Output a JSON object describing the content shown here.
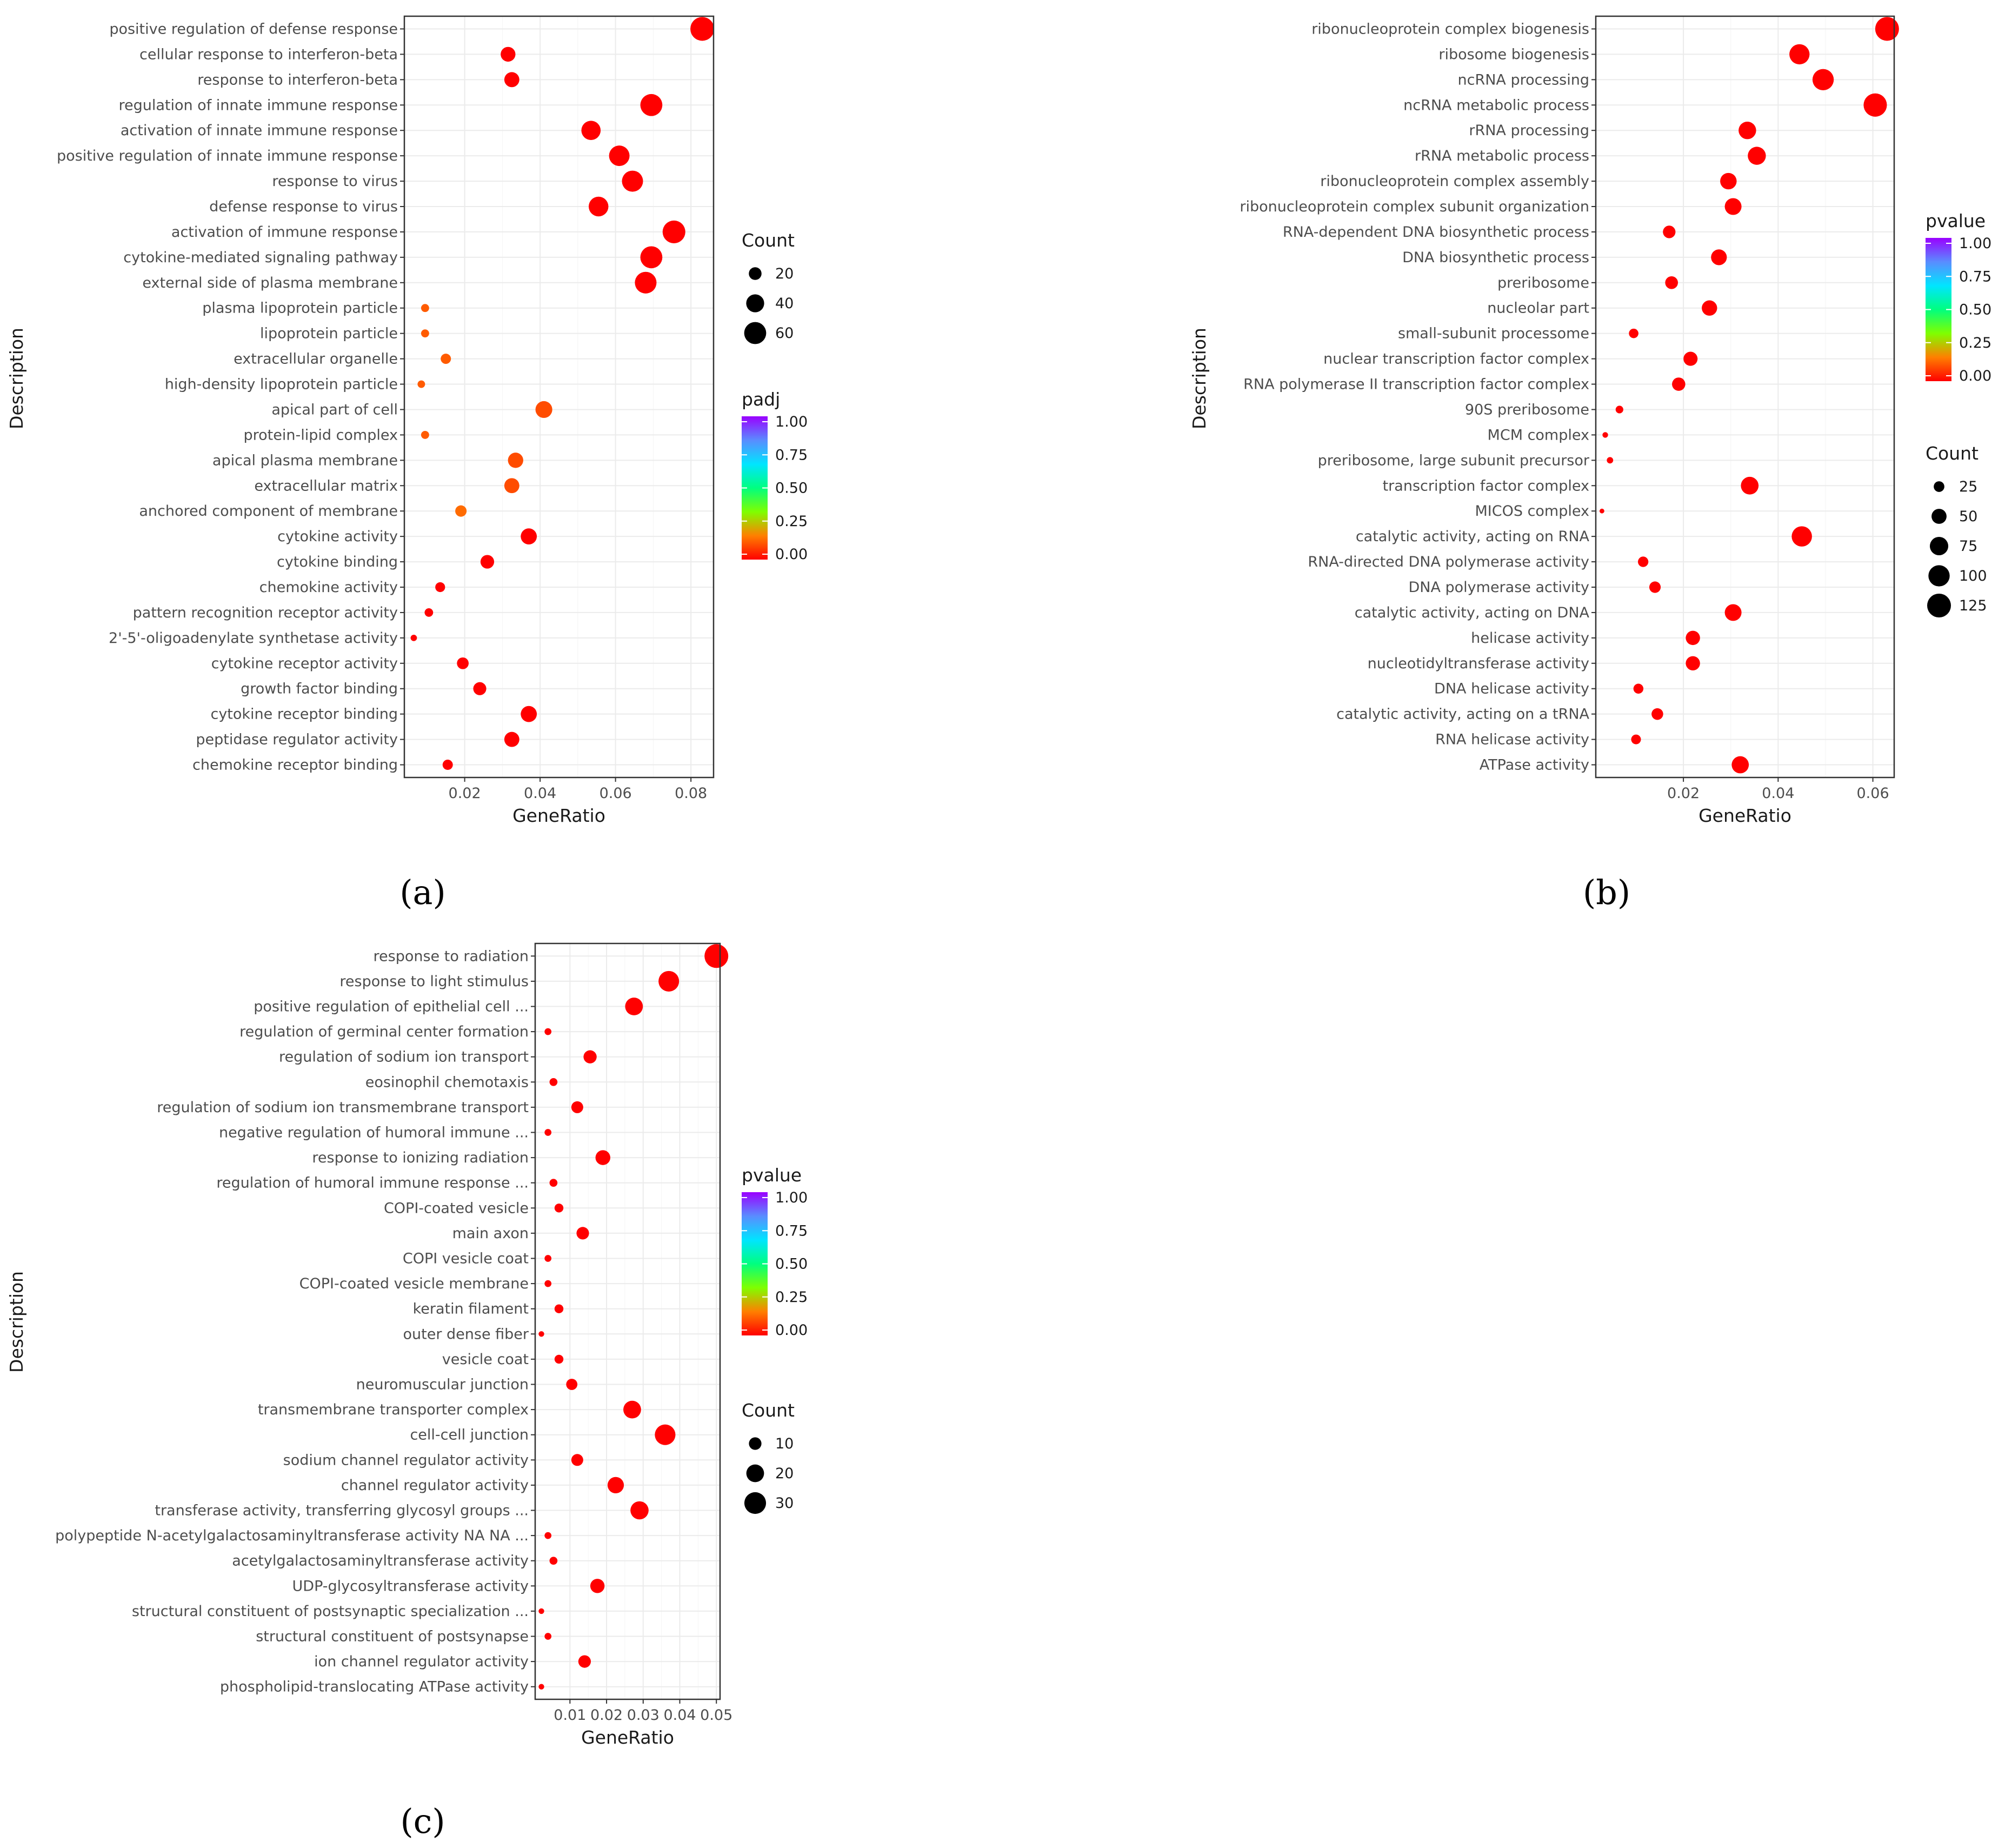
{
  "colors": {
    "low": "#ff0000",
    "gradient": [
      "#ff0000",
      "#ff7f00",
      "#7fff00",
      "#00ff7f",
      "#00e5ff",
      "#5a8cff",
      "#9a00ff"
    ]
  },
  "chart_data": [
    {
      "type": "scatter",
      "panel_label": "(a)",
      "xlabel": "GeneRatio",
      "ylabel": "Description",
      "xlim": [
        0.004,
        0.086
      ],
      "xticks": [
        0.02,
        0.04,
        0.06,
        0.08
      ],
      "xtick_labels": [
        "0.02",
        "0.04",
        "0.06",
        "0.08"
      ],
      "color_legend": {
        "title": "padj",
        "labels": [
          "1.00",
          "0.75",
          "0.50",
          "0.25",
          "0.00"
        ]
      },
      "size_legend": {
        "title": "Count",
        "values": [
          20,
          40,
          60
        ],
        "labels": [
          "20",
          "40",
          "60"
        ]
      },
      "points": [
        {
          "term": "positive regulation of defense response",
          "ratio": 0.083,
          "count": 70,
          "p": 0.0
        },
        {
          "term": "cellular response to interferon-beta",
          "ratio": 0.0315,
          "count": 27,
          "p": 0.0
        },
        {
          "term": "response to interferon-beta",
          "ratio": 0.0325,
          "count": 28,
          "p": 0.0
        },
        {
          "term": "regulation of innate immune response",
          "ratio": 0.0695,
          "count": 60,
          "p": 0.0
        },
        {
          "term": "activation of innate immune response",
          "ratio": 0.0535,
          "count": 46,
          "p": 0.0
        },
        {
          "term": "positive regulation of innate immune response",
          "ratio": 0.061,
          "count": 52,
          "p": 0.0
        },
        {
          "term": "response to virus",
          "ratio": 0.0645,
          "count": 55,
          "p": 0.0
        },
        {
          "term": "defense response to virus",
          "ratio": 0.0555,
          "count": 48,
          "p": 0.0
        },
        {
          "term": "activation of immune response",
          "ratio": 0.0755,
          "count": 64,
          "p": 0.0
        },
        {
          "term": "cytokine-mediated signaling pathway",
          "ratio": 0.0695,
          "count": 60,
          "p": 0.0
        },
        {
          "term": "external side of plasma membrane",
          "ratio": 0.068,
          "count": 58,
          "p": 0.0
        },
        {
          "term": "plasma lipoprotein particle",
          "ratio": 0.0095,
          "count": 8,
          "p": 0.12
        },
        {
          "term": "lipoprotein particle",
          "ratio": 0.0095,
          "count": 8,
          "p": 0.12
        },
        {
          "term": "extracellular organelle",
          "ratio": 0.015,
          "count": 13,
          "p": 0.12
        },
        {
          "term": "high-density lipoprotein particle",
          "ratio": 0.0085,
          "count": 7,
          "p": 0.12
        },
        {
          "term": "apical part of cell",
          "ratio": 0.041,
          "count": 35,
          "p": 0.1
        },
        {
          "term": "protein-lipid complex",
          "ratio": 0.0095,
          "count": 8,
          "p": 0.12
        },
        {
          "term": "apical plasma membrane",
          "ratio": 0.0335,
          "count": 29,
          "p": 0.1
        },
        {
          "term": "extracellular matrix",
          "ratio": 0.0325,
          "count": 28,
          "p": 0.1
        },
        {
          "term": "anchored component of membrane",
          "ratio": 0.019,
          "count": 16,
          "p": 0.14
        },
        {
          "term": "cytokine activity",
          "ratio": 0.037,
          "count": 32,
          "p": 0.0
        },
        {
          "term": "cytokine binding",
          "ratio": 0.026,
          "count": 23,
          "p": 0.0
        },
        {
          "term": "chemokine activity",
          "ratio": 0.0135,
          "count": 12,
          "p": 0.0
        },
        {
          "term": "pattern recognition receptor activity",
          "ratio": 0.0105,
          "count": 9,
          "p": 0.0
        },
        {
          "term": "2'-5'-oligoadenylate synthetase activity",
          "ratio": 0.0065,
          "count": 5,
          "p": 0.0
        },
        {
          "term": "cytokine receptor activity",
          "ratio": 0.0195,
          "count": 17,
          "p": 0.0
        },
        {
          "term": "growth factor binding",
          "ratio": 0.024,
          "count": 21,
          "p": 0.0
        },
        {
          "term": "cytokine receptor binding",
          "ratio": 0.037,
          "count": 32,
          "p": 0.0
        },
        {
          "term": "peptidase regulator activity",
          "ratio": 0.0325,
          "count": 28,
          "p": 0.0
        },
        {
          "term": "chemokine receptor binding",
          "ratio": 0.0155,
          "count": 13,
          "p": 0.0
        }
      ]
    },
    {
      "type": "scatter",
      "panel_label": "(b)",
      "xlabel": "GeneRatio",
      "ylabel": "Description",
      "xlim": [
        0.0015,
        0.0645
      ],
      "xticks": [
        0.02,
        0.04,
        0.06
      ],
      "xtick_labels": [
        "0.02",
        "0.04",
        "0.06"
      ],
      "color_legend": {
        "title": "pvalue",
        "labels": [
          "1.00",
          "0.75",
          "0.50",
          "0.25",
          "0.00"
        ]
      },
      "size_legend": {
        "title": "Count",
        "values": [
          25,
          50,
          75,
          100,
          125
        ],
        "labels": [
          "25",
          "50",
          "75",
          "100",
          "125"
        ]
      },
      "points": [
        {
          "term": "ribonucleoprotein complex biogenesis",
          "ratio": 0.063,
          "count": 125,
          "p": 0.0
        },
        {
          "term": "ribosome biogenesis",
          "ratio": 0.0445,
          "count": 90,
          "p": 0.0
        },
        {
          "term": "ncRNA processing",
          "ratio": 0.0495,
          "count": 100,
          "p": 0.0
        },
        {
          "term": "ncRNA metabolic process",
          "ratio": 0.0605,
          "count": 120,
          "p": 0.0
        },
        {
          "term": "rRNA processing",
          "ratio": 0.0335,
          "count": 68,
          "p": 0.0
        },
        {
          "term": "rRNA metabolic process",
          "ratio": 0.0355,
          "count": 72,
          "p": 0.0
        },
        {
          "term": "ribonucleoprotein complex assembly",
          "ratio": 0.0295,
          "count": 60,
          "p": 0.0
        },
        {
          "term": "ribonucleoprotein complex subunit organization",
          "ratio": 0.0305,
          "count": 62,
          "p": 0.0
        },
        {
          "term": "RNA-dependent DNA biosynthetic process",
          "ratio": 0.017,
          "count": 35,
          "p": 0.0
        },
        {
          "term": "DNA biosynthetic process",
          "ratio": 0.0275,
          "count": 55,
          "p": 0.0
        },
        {
          "term": "preribosome",
          "ratio": 0.0175,
          "count": 36,
          "p": 0.0
        },
        {
          "term": "nucleolar part",
          "ratio": 0.0255,
          "count": 52,
          "p": 0.0
        },
        {
          "term": "small-subunit processome",
          "ratio": 0.0095,
          "count": 20,
          "p": 0.0
        },
        {
          "term": "nuclear transcription factor complex",
          "ratio": 0.0215,
          "count": 44,
          "p": 0.0
        },
        {
          "term": "RNA polymerase II transcription factor complex",
          "ratio": 0.019,
          "count": 39,
          "p": 0.0
        },
        {
          "term": "90S preribosome",
          "ratio": 0.0065,
          "count": 13,
          "p": 0.0
        },
        {
          "term": "MCM complex",
          "ratio": 0.0035,
          "count": 7,
          "p": 0.0
        },
        {
          "term": "preribosome, large subunit precursor",
          "ratio": 0.0045,
          "count": 9,
          "p": 0.0
        },
        {
          "term": "transcription factor complex",
          "ratio": 0.034,
          "count": 69,
          "p": 0.0
        },
        {
          "term": "MICOS complex",
          "ratio": 0.0028,
          "count": 5,
          "p": 0.0
        },
        {
          "term": "catalytic activity, acting on RNA",
          "ratio": 0.045,
          "count": 91,
          "p": 0.0
        },
        {
          "term": "RNA-directed DNA polymerase activity",
          "ratio": 0.0115,
          "count": 24,
          "p": 0.0
        },
        {
          "term": "DNA polymerase activity",
          "ratio": 0.014,
          "count": 29,
          "p": 0.0
        },
        {
          "term": "catalytic activity, acting on DNA",
          "ratio": 0.0305,
          "count": 62,
          "p": 0.0
        },
        {
          "term": "helicase activity",
          "ratio": 0.022,
          "count": 45,
          "p": 0.0
        },
        {
          "term": "nucleotidyltransferase activity",
          "ratio": 0.022,
          "count": 45,
          "p": 0.0
        },
        {
          "term": "DNA helicase activity",
          "ratio": 0.0105,
          "count": 22,
          "p": 0.0
        },
        {
          "term": "catalytic activity, acting on a tRNA",
          "ratio": 0.0145,
          "count": 30,
          "p": 0.0
        },
        {
          "term": "RNA helicase activity",
          "ratio": 0.01,
          "count": 21,
          "p": 0.0
        },
        {
          "term": "ATPase activity",
          "ratio": 0.032,
          "count": 65,
          "p": 0.0
        }
      ]
    },
    {
      "type": "scatter",
      "panel_label": "(c)",
      "xlabel": "GeneRatio",
      "ylabel": "Description",
      "xlim": [
        0.0005,
        0.051
      ],
      "xticks": [
        0.01,
        0.02,
        0.03,
        0.04,
        0.05
      ],
      "xtick_labels": [
        "0.01",
        "0.02",
        "0.03",
        "0.04",
        "0.05"
      ],
      "color_legend": {
        "title": "pvalue",
        "labels": [
          "1.00",
          "0.75",
          "0.50",
          "0.25",
          "0.00"
        ]
      },
      "size_legend": {
        "title": "Count",
        "values": [
          10,
          20,
          30
        ],
        "labels": [
          "10",
          "20",
          "30"
        ]
      },
      "points": [
        {
          "term": "response to radiation",
          "ratio": 0.05,
          "count": 36,
          "p": 0.0
        },
        {
          "term": "response to light stimulus",
          "ratio": 0.037,
          "count": 27,
          "p": 0.0
        },
        {
          "term": "positive regulation of epithelial cell ...",
          "ratio": 0.0275,
          "count": 20,
          "p": 0.0
        },
        {
          "term": "regulation of germinal center formation",
          "ratio": 0.004,
          "count": 3,
          "p": 0.0
        },
        {
          "term": "regulation of sodium ion transport",
          "ratio": 0.0155,
          "count": 11,
          "p": 0.0
        },
        {
          "term": "eosinophil chemotaxis",
          "ratio": 0.0055,
          "count": 4,
          "p": 0.0
        },
        {
          "term": "regulation of sodium ion transmembrane transport",
          "ratio": 0.012,
          "count": 9,
          "p": 0.0
        },
        {
          "term": "negative regulation of humoral immune ...",
          "ratio": 0.004,
          "count": 3,
          "p": 0.0
        },
        {
          "term": "response to ionizing radiation",
          "ratio": 0.019,
          "count": 14,
          "p": 0.0
        },
        {
          "term": "regulation of humoral immune response ...",
          "ratio": 0.0055,
          "count": 4,
          "p": 0.0
        },
        {
          "term": "COPI-coated vesicle",
          "ratio": 0.007,
          "count": 5,
          "p": 0.0
        },
        {
          "term": "main axon",
          "ratio": 0.0135,
          "count": 10,
          "p": 0.0
        },
        {
          "term": "COPI vesicle coat",
          "ratio": 0.004,
          "count": 3,
          "p": 0.0
        },
        {
          "term": "COPI-coated vesicle membrane",
          "ratio": 0.004,
          "count": 3,
          "p": 0.0
        },
        {
          "term": "keratin filament",
          "ratio": 0.007,
          "count": 5,
          "p": 0.0
        },
        {
          "term": "outer dense fiber",
          "ratio": 0.0022,
          "count": 2,
          "p": 0.0
        },
        {
          "term": "vesicle coat",
          "ratio": 0.007,
          "count": 5,
          "p": 0.0
        },
        {
          "term": "neuromuscular junction",
          "ratio": 0.0105,
          "count": 8,
          "p": 0.0
        },
        {
          "term": "transmembrane transporter complex",
          "ratio": 0.027,
          "count": 20,
          "p": 0.0
        },
        {
          "term": "cell-cell junction",
          "ratio": 0.036,
          "count": 27,
          "p": 0.0
        },
        {
          "term": "sodium channel regulator activity",
          "ratio": 0.012,
          "count": 9,
          "p": 0.0
        },
        {
          "term": "channel regulator activity",
          "ratio": 0.0225,
          "count": 17,
          "p": 0.0
        },
        {
          "term": "transferase activity, transferring glycosyl groups ...",
          "ratio": 0.029,
          "count": 21,
          "p": 0.0
        },
        {
          "term": "polypeptide N-acetylgalactosaminyltransferase activity NA NA ...",
          "ratio": 0.004,
          "count": 3,
          "p": 0.0
        },
        {
          "term": "acetylgalactosaminyltransferase activity",
          "ratio": 0.0055,
          "count": 4,
          "p": 0.0
        },
        {
          "term": "UDP-glycosyltransferase activity",
          "ratio": 0.0175,
          "count": 13,
          "p": 0.0
        },
        {
          "term": "structural constituent of postsynaptic specialization ...",
          "ratio": 0.0022,
          "count": 2,
          "p": 0.0
        },
        {
          "term": "structural constituent of postsynapse",
          "ratio": 0.004,
          "count": 3,
          "p": 0.0
        },
        {
          "term": "ion channel regulator activity",
          "ratio": 0.014,
          "count": 10,
          "p": 0.0
        },
        {
          "term": "phospholipid-translocating ATPase activity",
          "ratio": 0.0022,
          "count": 2,
          "p": 0.0
        }
      ]
    }
  ]
}
